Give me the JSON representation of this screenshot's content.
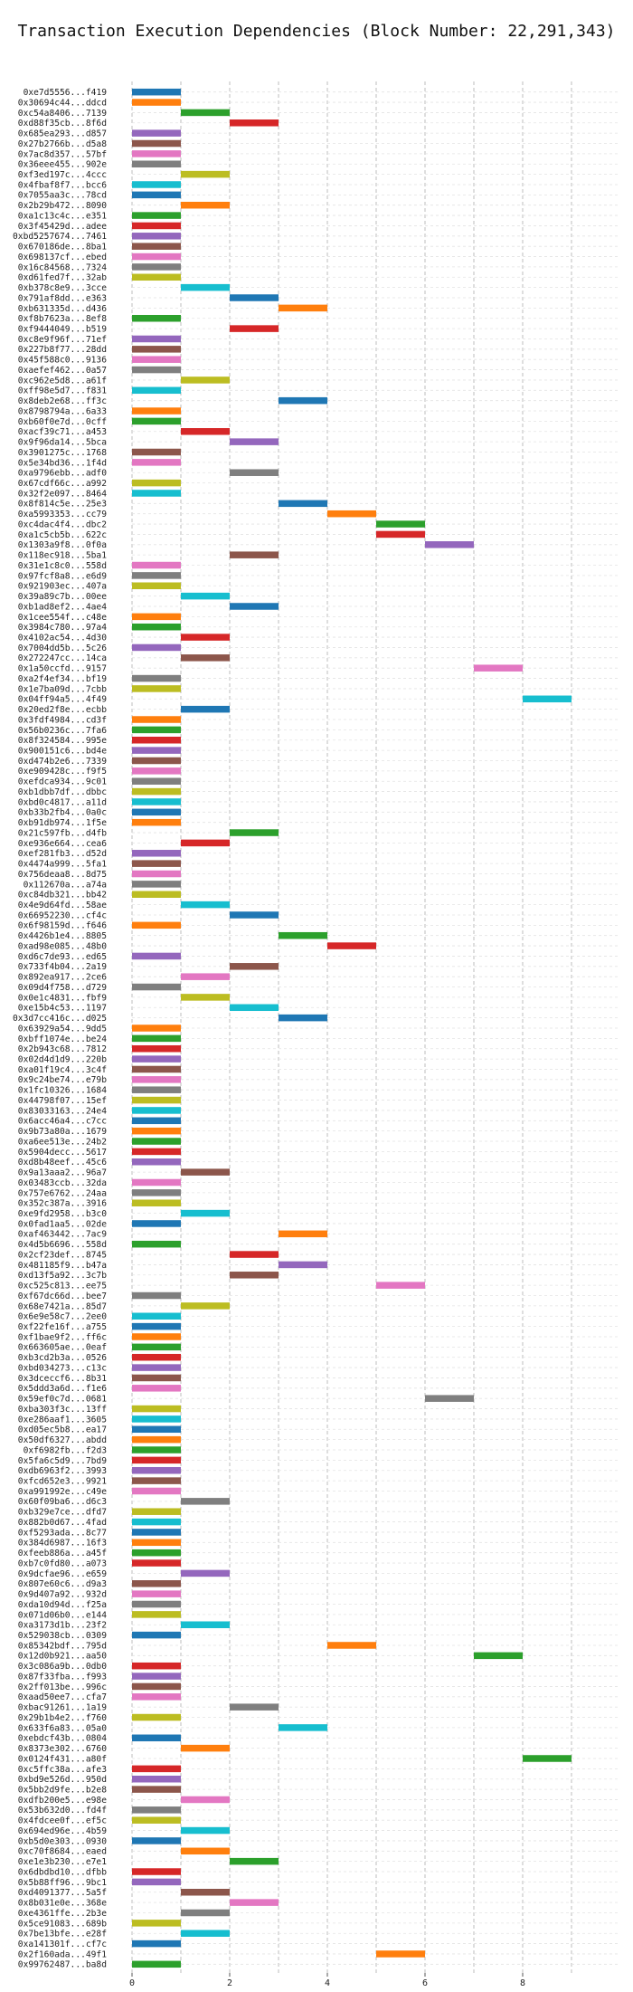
{
  "chart_data": {
    "type": "bar",
    "title": "Transaction Execution Dependencies (Block Number: 22,291,343)",
    "xlabel": "",
    "ylabel": "",
    "xlim": [
      0,
      9
    ],
    "xticks": [
      0,
      2,
      4,
      6,
      8
    ],
    "grid": true,
    "palette": [
      "#1f77b4",
      "#ff7f0e",
      "#2ca02c",
      "#d62728",
      "#9467bd",
      "#8c564b",
      "#e377c2",
      "#7f7f7f",
      "#bcbd22",
      "#17becf"
    ],
    "rows": [
      {
        "label": "0xe7d5556...f419",
        "start": 0,
        "end": 1
      },
      {
        "label": "0x30694c44...ddcd",
        "start": 0,
        "end": 1
      },
      {
        "label": "0xc54a8406...7139",
        "start": 1,
        "end": 2
      },
      {
        "label": "0xd88f35cb...8f6d",
        "start": 2,
        "end": 3
      },
      {
        "label": "0x685ea293...d857",
        "start": 0,
        "end": 1
      },
      {
        "label": "0x27b2766b...d5a8",
        "start": 0,
        "end": 1
      },
      {
        "label": "0x7ac8d357...57bf",
        "start": 0,
        "end": 1
      },
      {
        "label": "0x36eee455...902e",
        "start": 0,
        "end": 1
      },
      {
        "label": "0xf3ed197c...4ccc",
        "start": 1,
        "end": 2
      },
      {
        "label": "0x4fbaf8f7...bcc6",
        "start": 0,
        "end": 1
      },
      {
        "label": "0x7055aa3c...78cd",
        "start": 0,
        "end": 1
      },
      {
        "label": "0x2b29b472...8090",
        "start": 1,
        "end": 2
      },
      {
        "label": "0xa1c13c4c...e351",
        "start": 0,
        "end": 1
      },
      {
        "label": "0x3f45429d...adee",
        "start": 0,
        "end": 1
      },
      {
        "label": "0xbd5257674...7461",
        "start": 0,
        "end": 1
      },
      {
        "label": "0x670186de...8ba1",
        "start": 0,
        "end": 1
      },
      {
        "label": "0x698137cf...ebed",
        "start": 0,
        "end": 1
      },
      {
        "label": "0x16c84568...7324",
        "start": 0,
        "end": 1
      },
      {
        "label": "0xd61fed7f...32ab",
        "start": 0,
        "end": 1
      },
      {
        "label": "0xb378c8e9...3cce",
        "start": 1,
        "end": 2
      },
      {
        "label": "0x791af8dd...e363",
        "start": 2,
        "end": 3
      },
      {
        "label": "0xb631335d...d436",
        "start": 3,
        "end": 4
      },
      {
        "label": "0xf8b7623a...8ef8",
        "start": 0,
        "end": 1
      },
      {
        "label": "0xf9444049...b519",
        "start": 2,
        "end": 3
      },
      {
        "label": "0xc8e9f96f...71ef",
        "start": 0,
        "end": 1
      },
      {
        "label": "0x227b8f77...28dd",
        "start": 0,
        "end": 1
      },
      {
        "label": "0x45f588c0...9136",
        "start": 0,
        "end": 1
      },
      {
        "label": "0xaefef462...0a57",
        "start": 0,
        "end": 1
      },
      {
        "label": "0xc962e5d8...a61f",
        "start": 1,
        "end": 2
      },
      {
        "label": "0xff98e5d7...f831",
        "start": 0,
        "end": 1
      },
      {
        "label": "0x8deb2e68...ff3c",
        "start": 3,
        "end": 4
      },
      {
        "label": "0x8798794a...6a33",
        "start": 0,
        "end": 1
      },
      {
        "label": "0xb60f0e7d...0cff",
        "start": 0,
        "end": 1
      },
      {
        "label": "0xacf39c71...a453",
        "start": 1,
        "end": 2
      },
      {
        "label": "0x9f96da14...5bca",
        "start": 2,
        "end": 3
      },
      {
        "label": "0x3901275c...1768",
        "start": 0,
        "end": 1
      },
      {
        "label": "0x5e34bd36...1f4d",
        "start": 0,
        "end": 1
      },
      {
        "label": "0xa9796ebb...adf0",
        "start": 2,
        "end": 3
      },
      {
        "label": "0x67cdf66c...a992",
        "start": 0,
        "end": 1
      },
      {
        "label": "0x32f2e097...8464",
        "start": 0,
        "end": 1
      },
      {
        "label": "0x8f814c5e...25e3",
        "start": 3,
        "end": 4
      },
      {
        "label": "0xa5993353...cc79",
        "start": 4,
        "end": 5
      },
      {
        "label": "0xc4dac4f4...dbc2",
        "start": 5,
        "end": 6
      },
      {
        "label": "0xa1c5cb5b...622c",
        "start": 5,
        "end": 6
      },
      {
        "label": "0x1303a9f8...0f0a",
        "start": 6,
        "end": 7
      },
      {
        "label": "0x118ec918...5ba1",
        "start": 2,
        "end": 3
      },
      {
        "label": "0x31e1c8c0...558d",
        "start": 0,
        "end": 1
      },
      {
        "label": "0x97fcf8a8...e6d9",
        "start": 0,
        "end": 1
      },
      {
        "label": "0x921903ec...407a",
        "start": 0,
        "end": 1
      },
      {
        "label": "0x39a89c7b...00ee",
        "start": 1,
        "end": 2
      },
      {
        "label": "0xb1ad8ef2...4ae4",
        "start": 2,
        "end": 3
      },
      {
        "label": "0x1cee554f...c48e",
        "start": 0,
        "end": 1
      },
      {
        "label": "0x3984c780...97a4",
        "start": 0,
        "end": 1
      },
      {
        "label": "0x4102ac54...4d30",
        "start": 1,
        "end": 2
      },
      {
        "label": "0x7004dd5b...5c26",
        "start": 0,
        "end": 1
      },
      {
        "label": "0x272247cc...14ca",
        "start": 1,
        "end": 2
      },
      {
        "label": "0x1a50ccfd...9157",
        "start": 7,
        "end": 8
      },
      {
        "label": "0xa2f4ef34...bf19",
        "start": 0,
        "end": 1
      },
      {
        "label": "0x1e7ba09d...7cbb",
        "start": 0,
        "end": 1
      },
      {
        "label": "0x04ff94a5...4f49",
        "start": 8,
        "end": 9
      },
      {
        "label": "0x20ed2f8e...ecbb",
        "start": 1,
        "end": 2
      },
      {
        "label": "0x3fdf4984...cd3f",
        "start": 0,
        "end": 1
      },
      {
        "label": "0x56b0236c...7fa6",
        "start": 0,
        "end": 1
      },
      {
        "label": "0x8f324584...995e",
        "start": 0,
        "end": 1
      },
      {
        "label": "0x900151c6...bd4e",
        "start": 0,
        "end": 1
      },
      {
        "label": "0xd474b2e6...7339",
        "start": 0,
        "end": 1
      },
      {
        "label": "0xe909428c...f9f5",
        "start": 0,
        "end": 1
      },
      {
        "label": "0xefdca934...9c01",
        "start": 0,
        "end": 1
      },
      {
        "label": "0xb1dbb7df...dbbc",
        "start": 0,
        "end": 1
      },
      {
        "label": "0xbd0c4817...a11d",
        "start": 0,
        "end": 1
      },
      {
        "label": "0xb33b2fb4...0a0c",
        "start": 0,
        "end": 1
      },
      {
        "label": "0xb91db974...1f5e",
        "start": 0,
        "end": 1
      },
      {
        "label": "0x21c597fb...d4fb",
        "start": 2,
        "end": 3
      },
      {
        "label": "0xe936e664...cea6",
        "start": 1,
        "end": 2
      },
      {
        "label": "0xef281fb3...d52d",
        "start": 0,
        "end": 1
      },
      {
        "label": "0x4474a999...5fa1",
        "start": 0,
        "end": 1
      },
      {
        "label": "0x756deaa8...8d75",
        "start": 0,
        "end": 1
      },
      {
        "label": "0x112670a...a74a",
        "start": 0,
        "end": 1
      },
      {
        "label": "0xc84db321...bb42",
        "start": 0,
        "end": 1
      },
      {
        "label": "0x4e9d64fd...58ae",
        "start": 1,
        "end": 2
      },
      {
        "label": "0x66952230...cf4c",
        "start": 2,
        "end": 3
      },
      {
        "label": "0x6f98159d...f646",
        "start": 0,
        "end": 1
      },
      {
        "label": "0x4426b1e4...8805",
        "start": 3,
        "end": 4
      },
      {
        "label": "0xad98e085...48b0",
        "start": 4,
        "end": 5
      },
      {
        "label": "0xd6c7de93...ed65",
        "start": 0,
        "end": 1
      },
      {
        "label": "0x733f4b04...2a19",
        "start": 2,
        "end": 3
      },
      {
        "label": "0x892ea917...2ce6",
        "start": 1,
        "end": 2
      },
      {
        "label": "0x09d4f758...d729",
        "start": 0,
        "end": 1
      },
      {
        "label": "0x0e1c4831...fbf9",
        "start": 1,
        "end": 2
      },
      {
        "label": "0xe15b4c53...1197",
        "start": 2,
        "end": 3
      },
      {
        "label": "0x3d7cc416c...d025",
        "start": 3,
        "end": 4
      },
      {
        "label": "0x63929a54...9dd5",
        "start": 0,
        "end": 1
      },
      {
        "label": "0xbff1074e...be24",
        "start": 0,
        "end": 1
      },
      {
        "label": "0x2b943c68...7812",
        "start": 0,
        "end": 1
      },
      {
        "label": "0x02d4d1d9...220b",
        "start": 0,
        "end": 1
      },
      {
        "label": "0xa01f19c4...3c4f",
        "start": 0,
        "end": 1
      },
      {
        "label": "0x9c24be74...e79b",
        "start": 0,
        "end": 1
      },
      {
        "label": "0x1fc10326...1684",
        "start": 0,
        "end": 1
      },
      {
        "label": "0x44798f07...15ef",
        "start": 0,
        "end": 1
      },
      {
        "label": "0x83033163...24e4",
        "start": 0,
        "end": 1
      },
      {
        "label": "0x6acc46a4...c7cc",
        "start": 0,
        "end": 1
      },
      {
        "label": "0x9b73a80a...1679",
        "start": 0,
        "end": 1
      },
      {
        "label": "0xa6ee513e...24b2",
        "start": 0,
        "end": 1
      },
      {
        "label": "0x5904decc...5617",
        "start": 0,
        "end": 1
      },
      {
        "label": "0xd8b48eef...45c6",
        "start": 0,
        "end": 1
      },
      {
        "label": "0x9a13aaa2...96a7",
        "start": 1,
        "end": 2
      },
      {
        "label": "0x03483ccb...32da",
        "start": 0,
        "end": 1
      },
      {
        "label": "0x757e6762...24aa",
        "start": 0,
        "end": 1
      },
      {
        "label": "0x352c387a...3916",
        "start": 0,
        "end": 1
      },
      {
        "label": "0xe9fd2958...b3c0",
        "start": 1,
        "end": 2
      },
      {
        "label": "0x0fad1aa5...02de",
        "start": 0,
        "end": 1
      },
      {
        "label": "0xaf463442...7ac9",
        "start": 3,
        "end": 4
      },
      {
        "label": "0x4d5b6696...558d",
        "start": 0,
        "end": 1
      },
      {
        "label": "0x2cf23def...8745",
        "start": 2,
        "end": 3
      },
      {
        "label": "0x481185f9...b47a",
        "start": 3,
        "end": 4
      },
      {
        "label": "0xd13f5a92...3c7b",
        "start": 2,
        "end": 3
      },
      {
        "label": "0xc525c813...ee75",
        "start": 5,
        "end": 6
      },
      {
        "label": "0xf67dc66d...bee7",
        "start": 0,
        "end": 1
      },
      {
        "label": "0x68e7421a...85d7",
        "start": 1,
        "end": 2
      },
      {
        "label": "0x6e9e58c7...2ee0",
        "start": 0,
        "end": 1
      },
      {
        "label": "0xf22fe16f...a755",
        "start": 0,
        "end": 1
      },
      {
        "label": "0xf1bae9f2...ff6c",
        "start": 0,
        "end": 1
      },
      {
        "label": "0x663605ae...0eaf",
        "start": 0,
        "end": 1
      },
      {
        "label": "0xb3cd2b3a...0526",
        "start": 0,
        "end": 1
      },
      {
        "label": "0xbd034273...c13c",
        "start": 0,
        "end": 1
      },
      {
        "label": "0x3dceccf6...8b31",
        "start": 0,
        "end": 1
      },
      {
        "label": "0x5ddd3a6d...f1e6",
        "start": 0,
        "end": 1
      },
      {
        "label": "0x59ef0c7d...0681",
        "start": 6,
        "end": 7
      },
      {
        "label": "0xba303f3c...13ff",
        "start": 0,
        "end": 1
      },
      {
        "label": "0xe286aaf1...3605",
        "start": 0,
        "end": 1
      },
      {
        "label": "0xd05ec5b8...ea17",
        "start": 0,
        "end": 1
      },
      {
        "label": "0x50df6327...abdd",
        "start": 0,
        "end": 1
      },
      {
        "label": "0xf6982fb...f2d3",
        "start": 0,
        "end": 1
      },
      {
        "label": "0x5fa6c5d9...7bd9",
        "start": 0,
        "end": 1
      },
      {
        "label": "0xdb6963f2...3993",
        "start": 0,
        "end": 1
      },
      {
        "label": "0xfcd652e3...9921",
        "start": 0,
        "end": 1
      },
      {
        "label": "0xa991992e...c49e",
        "start": 0,
        "end": 1
      },
      {
        "label": "0x60f09ba6...d6c3",
        "start": 1,
        "end": 2
      },
      {
        "label": "0xb329e7ce...dfd7",
        "start": 0,
        "end": 1
      },
      {
        "label": "0x882b0d67...4fad",
        "start": 0,
        "end": 1
      },
      {
        "label": "0xf5293ada...8c77",
        "start": 0,
        "end": 1
      },
      {
        "label": "0x384d6987...16f3",
        "start": 0,
        "end": 1
      },
      {
        "label": "0xfeeb886a...a45f",
        "start": 0,
        "end": 1
      },
      {
        "label": "0xb7c0fd80...a073",
        "start": 0,
        "end": 1
      },
      {
        "label": "0x9dcfae96...e659",
        "start": 1,
        "end": 2
      },
      {
        "label": "0x807e60c6...d9a3",
        "start": 0,
        "end": 1
      },
      {
        "label": "0x9d407a92...932d",
        "start": 0,
        "end": 1
      },
      {
        "label": "0xda10d94d...f25a",
        "start": 0,
        "end": 1
      },
      {
        "label": "0x071d06b0...e144",
        "start": 0,
        "end": 1
      },
      {
        "label": "0xa3173d1b...23f2",
        "start": 1,
        "end": 2
      },
      {
        "label": "0x529038cb...0309",
        "start": 0,
        "end": 1
      },
      {
        "label": "0x85342bdf...795d",
        "start": 4,
        "end": 5
      },
      {
        "label": "0x12d0b921...aa50",
        "start": 7,
        "end": 8
      },
      {
        "label": "0x3c086a9b...0db0",
        "start": 0,
        "end": 1
      },
      {
        "label": "0x87f33fba...f993",
        "start": 0,
        "end": 1
      },
      {
        "label": "0x2ff013be...996c",
        "start": 0,
        "end": 1
      },
      {
        "label": "0xaad50ee7...cfa7",
        "start": 0,
        "end": 1
      },
      {
        "label": "0xbac91261...1a19",
        "start": 2,
        "end": 3
      },
      {
        "label": "0x29b1b4e2...f760",
        "start": 0,
        "end": 1
      },
      {
        "label": "0x633f6a83...05a0",
        "start": 3,
        "end": 4
      },
      {
        "label": "0xebdcf43b...0804",
        "start": 0,
        "end": 1
      },
      {
        "label": "0x8373e302...6760",
        "start": 1,
        "end": 2
      },
      {
        "label": "0x0124f431...a80f",
        "start": 8,
        "end": 9
      },
      {
        "label": "0xc5ffc38a...afe3",
        "start": 0,
        "end": 1
      },
      {
        "label": "0xbd9e526d...950d",
        "start": 0,
        "end": 1
      },
      {
        "label": "0x5bb2d9fe...b2e8",
        "start": 0,
        "end": 1
      },
      {
        "label": "0xdfb200e5...e98e",
        "start": 1,
        "end": 2
      },
      {
        "label": "0x53b632d0...fd4f",
        "start": 0,
        "end": 1
      },
      {
        "label": "0x4fdcee0f...ef5c",
        "start": 0,
        "end": 1
      },
      {
        "label": "0x694ed96e...4b59",
        "start": 1,
        "end": 2
      },
      {
        "label": "0xb5d0e303...0930",
        "start": 0,
        "end": 1
      },
      {
        "label": "0xc70f8684...eaed",
        "start": 1,
        "end": 2
      },
      {
        "label": "0xe1e3b230...e7e1",
        "start": 2,
        "end": 3
      },
      {
        "label": "0x6dbdbd10...dfbb",
        "start": 0,
        "end": 1
      },
      {
        "label": "0x5b88ff96...9bc1",
        "start": 0,
        "end": 1
      },
      {
        "label": "0xd4091377...5a5f",
        "start": 1,
        "end": 2
      },
      {
        "label": "0x8b031e0e...368e",
        "start": 2,
        "end": 3
      },
      {
        "label": "0xe4361ffe...2b3e",
        "start": 1,
        "end": 2
      },
      {
        "label": "0x5ce91083...689b",
        "start": 0,
        "end": 1
      },
      {
        "label": "0x7be13bfe...e28f",
        "start": 1,
        "end": 2
      },
      {
        "label": "0xa141301f...cf7c",
        "start": 0,
        "end": 1
      },
      {
        "label": "0x2f160ada...49f1",
        "start": 5,
        "end": 6
      },
      {
        "label": "0x99762487...ba8d",
        "start": 0,
        "end": 1
      }
    ]
  }
}
